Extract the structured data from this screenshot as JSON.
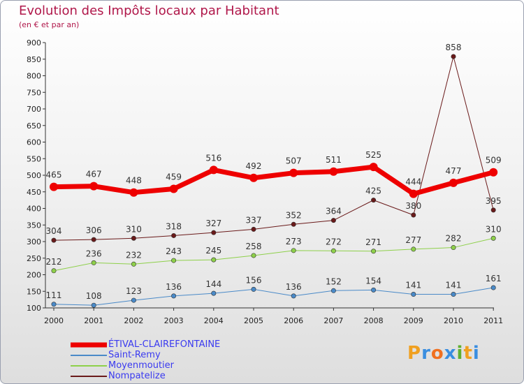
{
  "title": "Evolution des Impôts locaux par Habitant",
  "subtitle": "(en € et par an)",
  "logo": {
    "text": "Proxiti",
    "letters": [
      "P",
      "r",
      "o",
      "x",
      "i",
      "t",
      "i"
    ],
    "colors": [
      "#f0a020",
      "#3a8ee0",
      "#f07020",
      "#3a8ee0",
      "#60b030",
      "#f0a020",
      "#3a8ee0"
    ]
  },
  "chart_data": {
    "type": "line",
    "title": "Evolution des Impôts locaux par Habitant",
    "subtitle": "(en € et par an)",
    "x": [
      "2000",
      "2001",
      "2002",
      "2003",
      "2004",
      "2005",
      "2006",
      "2007",
      "2008",
      "2009",
      "2010",
      "2011"
    ],
    "ylim": [
      100,
      900
    ],
    "yticks": [
      "100",
      "150",
      "200",
      "250",
      "300",
      "350",
      "400",
      "450",
      "500",
      "550",
      "600",
      "650",
      "700",
      "750",
      "800",
      "850",
      "900"
    ],
    "grid": false,
    "series": [
      {
        "name": "ÉTIVAL-CLAIREFONTAINE",
        "color": "#ee0000",
        "width": 7,
        "values": [
          465,
          467,
          448,
          459,
          516,
          492,
          507,
          511,
          525,
          444,
          477,
          509
        ],
        "labels": [
          "465",
          "467",
          "448",
          "459",
          "516",
          "492",
          "507",
          "511",
          "525",
          "444",
          "477",
          "509"
        ]
      },
      {
        "name": "Saint-Remy",
        "color": "#4a8ac8",
        "width": 1,
        "values": [
          111,
          108,
          123,
          136,
          144,
          156,
          136,
          152,
          154,
          141,
          141,
          161
        ],
        "labels": [
          "111",
          "108",
          "123",
          "136",
          "144",
          "156",
          "136",
          "152",
          "154",
          "141",
          "141",
          "161"
        ]
      },
      {
        "name": "Moyenmoutier",
        "color": "#8ed04a",
        "width": 1,
        "values": [
          212,
          236,
          232,
          243,
          245,
          258,
          273,
          272,
          271,
          277,
          282,
          310
        ],
        "labels": [
          "212",
          "236",
          "232",
          "243",
          "245",
          "258",
          "273",
          "272",
          "271",
          "277",
          "282",
          "310"
        ]
      },
      {
        "name": "Nompatelize",
        "color": "#6a1a1a",
        "width": 1,
        "values": [
          304,
          306,
          310,
          318,
          327,
          337,
          352,
          364,
          425,
          380,
          858,
          395
        ],
        "labels": [
          "304",
          "306",
          "310",
          "318",
          "327",
          "337",
          "352",
          "364",
          "425",
          "380",
          "858",
          "395"
        ]
      }
    ]
  }
}
